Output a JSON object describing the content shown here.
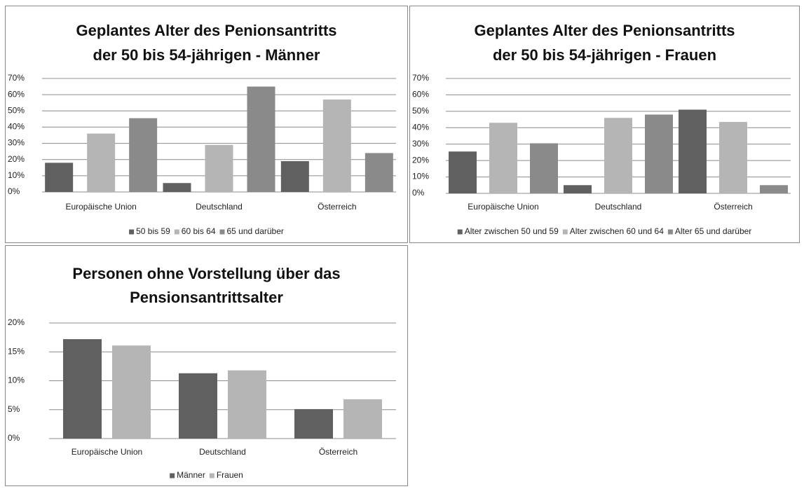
{
  "chart_data": [
    {
      "type": "bar",
      "title": [
        "Geplantes Alter des Penionsantritts",
        "der 50 bis 54-jährigen - Männer"
      ],
      "categories": [
        "Europäische Union",
        "Deutschland",
        "Österreich"
      ],
      "series": [
        {
          "name": "50 bis 59",
          "color": "#606060",
          "values": [
            18,
            5.5,
            19
          ]
        },
        {
          "name": "60 bis 64",
          "color": "#b5b5b5",
          "values": [
            36,
            29,
            57
          ]
        },
        {
          "name": "65 und darüber",
          "color": "#8a8a8a",
          "values": [
            45.5,
            65,
            24
          ]
        }
      ],
      "ylim": [
        0,
        70
      ],
      "yticks": [
        {
          "value": 0,
          "label": "0%"
        },
        {
          "value": 10,
          "label": "10%"
        },
        {
          "value": 20,
          "label": "20%"
        },
        {
          "value": 30,
          "label": "30%"
        },
        {
          "value": 40,
          "label": "40%"
        },
        {
          "value": 50,
          "label": "50%"
        },
        {
          "value": 60,
          "label": "60%"
        },
        {
          "value": 70,
          "label": "70%"
        }
      ],
      "grid": true,
      "legend": "bottom"
    },
    {
      "type": "bar",
      "title": [
        "Geplantes Alter des Penionsantritts",
        "der 50 bis 54-jährigen - Frauen"
      ],
      "categories": [
        "Europäische Union",
        "Deutschland",
        "Österreich"
      ],
      "series": [
        {
          "name": "Alter zwischen 50 und 59",
          "color": "#606060",
          "values": [
            25.5,
            5,
            51
          ]
        },
        {
          "name": "Alter zwischen 60 und 64",
          "color": "#b5b5b5",
          "values": [
            43,
            46,
            43.5
          ]
        },
        {
          "name": "Alter 65 und darüber",
          "color": "#8a8a8a",
          "values": [
            30.5,
            48,
            5
          ]
        }
      ],
      "ylim": [
        0,
        70
      ],
      "yticks": [
        {
          "value": 0,
          "label": "0%"
        },
        {
          "value": 10,
          "label": "10%"
        },
        {
          "value": 20,
          "label": "20%"
        },
        {
          "value": 30,
          "label": "30%"
        },
        {
          "value": 40,
          "label": "40%"
        },
        {
          "value": 50,
          "label": "50%"
        },
        {
          "value": 60,
          "label": "60%"
        },
        {
          "value": 70,
          "label": "70%"
        }
      ],
      "grid": true,
      "legend": "bottom"
    },
    {
      "type": "bar",
      "title": [
        "Personen ohne Vorstellung über das",
        "Pensionsantrittsalter"
      ],
      "categories": [
        "Europäische Union",
        "Deutschland",
        "Österreich"
      ],
      "series": [
        {
          "name": "Männer",
          "color": "#606060",
          "values": [
            17.2,
            11.3,
            5.1
          ]
        },
        {
          "name": "Frauen",
          "color": "#b5b5b5",
          "values": [
            16.1,
            11.8,
            6.8
          ]
        }
      ],
      "ylim": [
        0,
        20
      ],
      "yticks": [
        {
          "value": 0,
          "label": "0%"
        },
        {
          "value": 5,
          "label": "5%"
        },
        {
          "value": 10,
          "label": "10%"
        },
        {
          "value": 15,
          "label": "15%"
        },
        {
          "value": 20,
          "label": "20%"
        }
      ],
      "grid": true,
      "legend": "bottom"
    }
  ]
}
